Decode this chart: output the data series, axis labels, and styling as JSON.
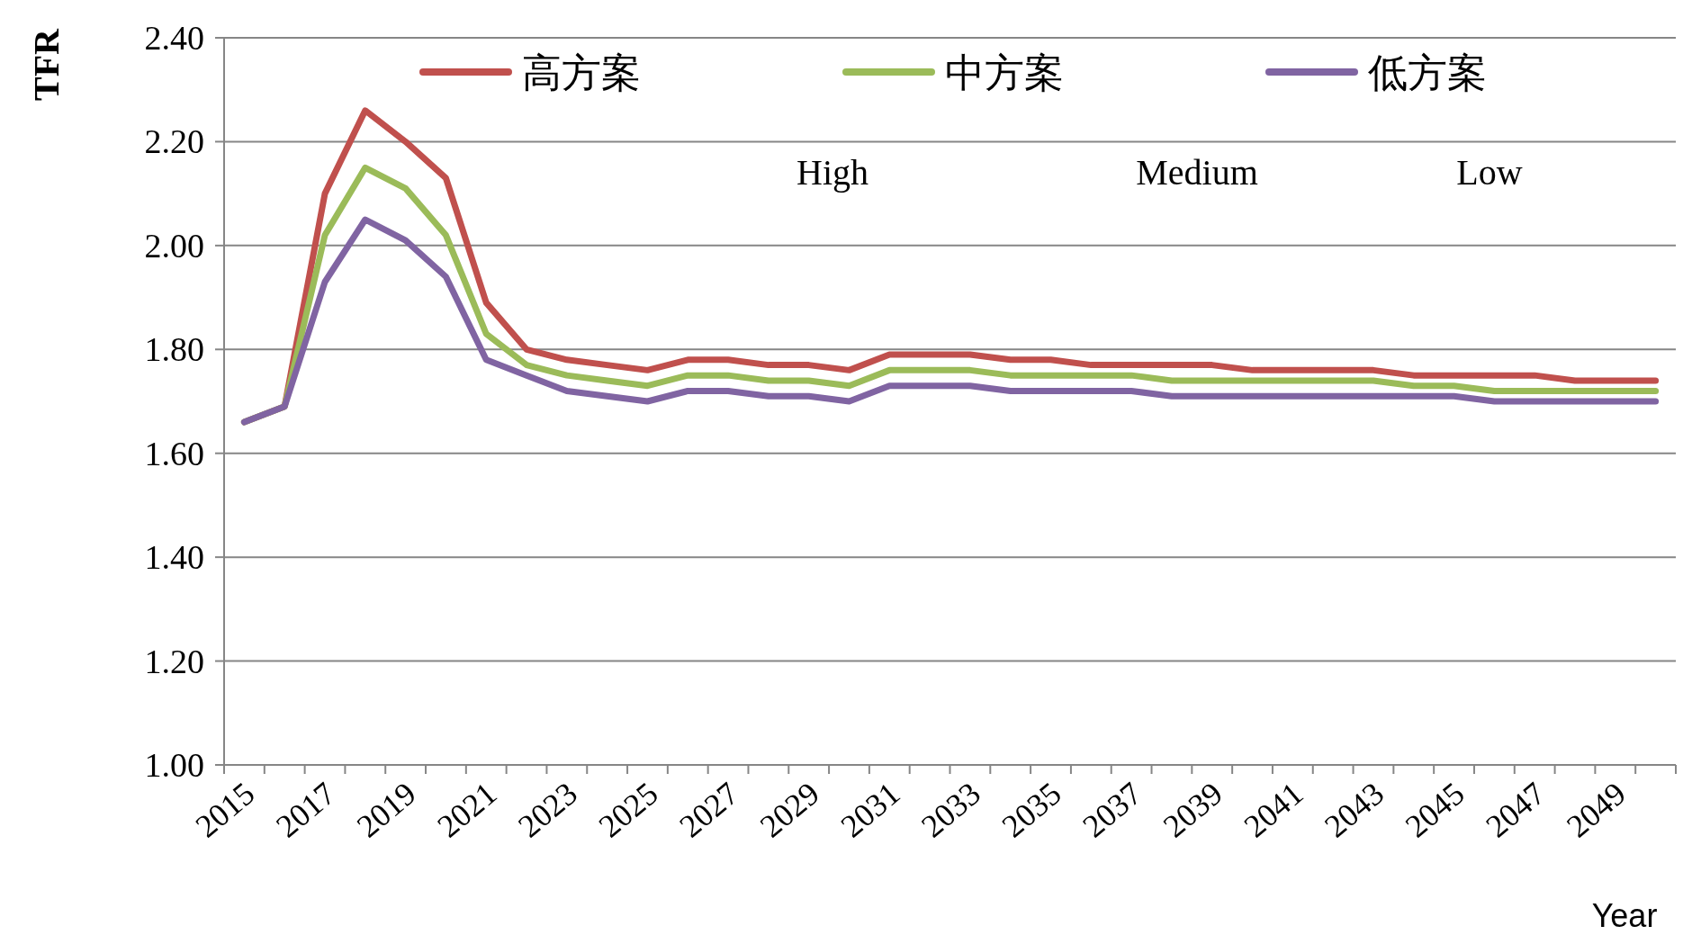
{
  "chart_data": {
    "type": "line",
    "ylabel": "TFR",
    "xlabel": "Year",
    "categories": [
      "2015",
      null,
      "2017",
      null,
      "2019",
      null,
      "2021",
      null,
      "2023",
      null,
      "2025",
      null,
      "2027",
      null,
      "2029",
      null,
      "2031",
      null,
      "2033",
      null,
      "2035",
      null,
      "2037",
      null,
      "2039",
      null,
      "2041",
      null,
      "2043",
      null,
      "2045",
      null,
      "2047",
      null,
      "2049",
      null
    ],
    "series": [
      {
        "name": "高方案",
        "color": "#c0504d",
        "values": [
          1.66,
          1.69,
          2.1,
          2.26,
          2.2,
          2.13,
          1.89,
          1.8,
          1.78,
          1.77,
          1.76,
          1.78,
          1.78,
          1.77,
          1.77,
          1.76,
          1.79,
          1.79,
          1.79,
          1.78,
          1.78,
          1.77,
          1.77,
          1.77,
          1.77,
          1.76,
          1.76,
          1.76,
          1.76,
          1.75,
          1.75,
          1.75,
          1.75,
          1.74,
          1.74,
          1.74
        ]
      },
      {
        "name": "中方案",
        "color": "#9bbb59",
        "values": [
          1.66,
          1.69,
          2.02,
          2.15,
          2.11,
          2.02,
          1.83,
          1.77,
          1.75,
          1.74,
          1.73,
          1.75,
          1.75,
          1.74,
          1.74,
          1.73,
          1.76,
          1.76,
          1.76,
          1.75,
          1.75,
          1.75,
          1.75,
          1.74,
          1.74,
          1.74,
          1.74,
          1.74,
          1.74,
          1.73,
          1.73,
          1.72,
          1.72,
          1.72,
          1.72,
          1.72
        ]
      },
      {
        "name": "低方案",
        "color": "#8064a2",
        "values": [
          1.66,
          1.69,
          1.93,
          2.05,
          2.01,
          1.94,
          1.78,
          1.75,
          1.72,
          1.71,
          1.7,
          1.72,
          1.72,
          1.71,
          1.71,
          1.7,
          1.73,
          1.73,
          1.73,
          1.72,
          1.72,
          1.72,
          1.72,
          1.71,
          1.71,
          1.71,
          1.71,
          1.71,
          1.71,
          1.71,
          1.71,
          1.7,
          1.7,
          1.7,
          1.7,
          1.7
        ]
      }
    ],
    "ylim": [
      1.0,
      2.4
    ],
    "yticks": [
      {
        "value": 1.0,
        "label": "1.00"
      },
      {
        "value": 1.2,
        "label": "1.20"
      },
      {
        "value": 1.4,
        "label": "1.40"
      },
      {
        "value": 1.6,
        "label": "1.60"
      },
      {
        "value": 1.8,
        "label": "1.80"
      },
      {
        "value": 2.0,
        "label": "2.00"
      },
      {
        "value": 2.2,
        "label": "2.20"
      },
      {
        "value": 2.4,
        "label": "2.40"
      }
    ],
    "grid": "y",
    "legend": "top",
    "annotations": [
      "High",
      "Medium",
      "Low"
    ]
  }
}
